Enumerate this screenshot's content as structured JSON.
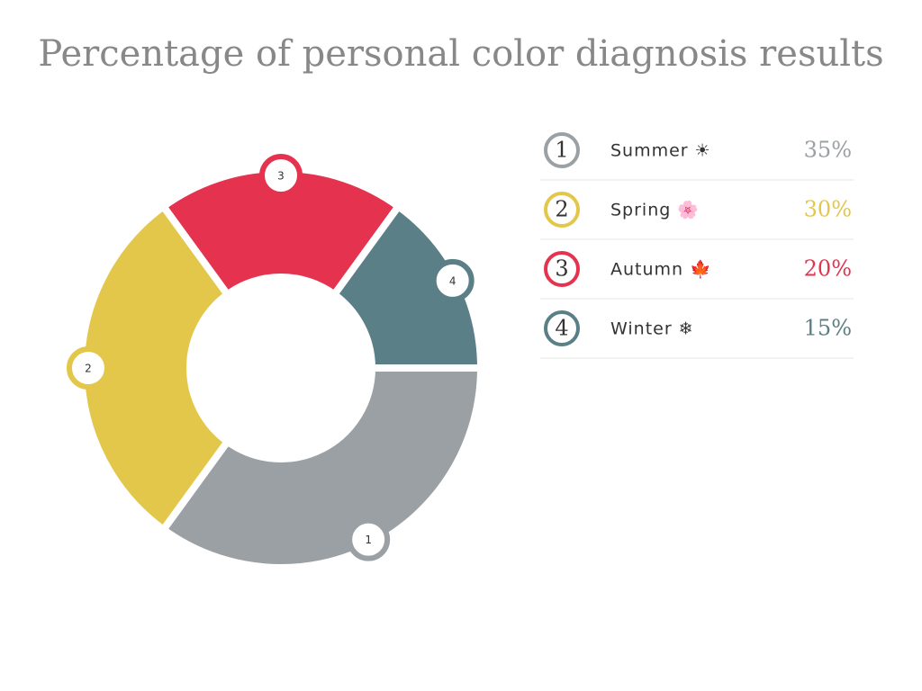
{
  "chart_data": {
    "type": "donut",
    "title": "Percentage of personal color diagnosis results",
    "categories": [
      "Summer ☀",
      "Spring 🌸",
      "Autumn 🍁",
      "Winter ❄"
    ],
    "index_labels": [
      1,
      2,
      3,
      4
    ],
    "values": [
      35,
      30,
      20,
      15
    ],
    "value_labels": [
      "35%",
      "30%",
      "20%",
      "15%"
    ],
    "colors": [
      "#9aa0a3",
      "#e3c74a",
      "#e5324f",
      "#5b7f86"
    ]
  }
}
